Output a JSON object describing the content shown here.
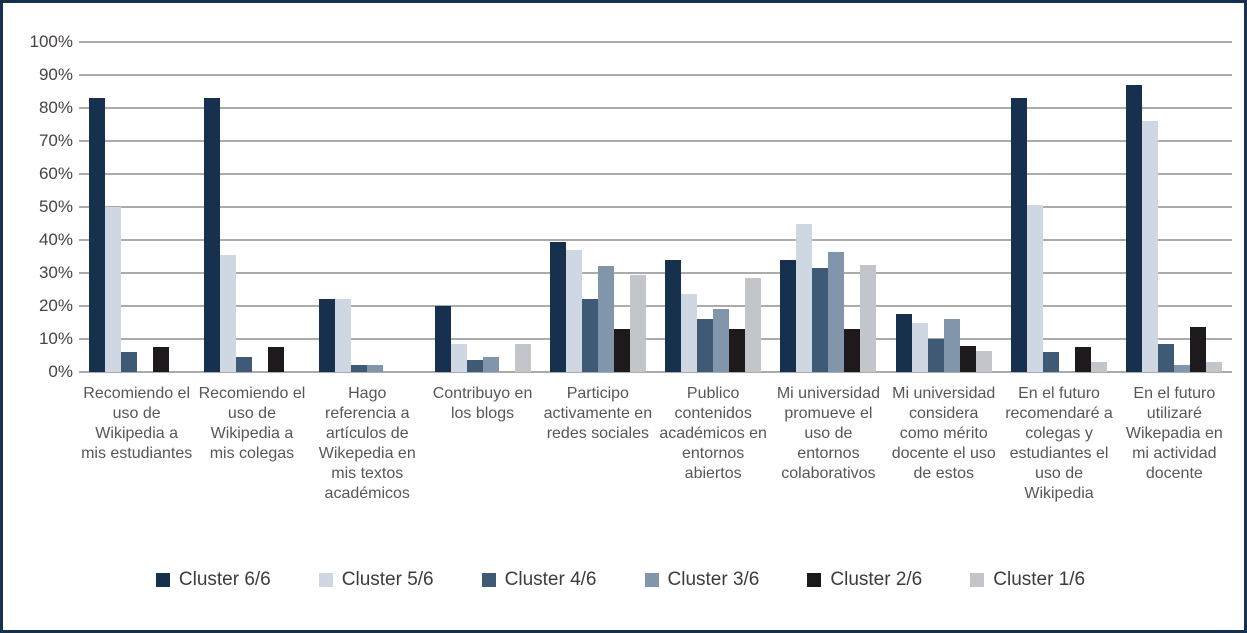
{
  "chart_data": {
    "type": "bar",
    "title": "",
    "xlabel": "",
    "ylabel": "",
    "units": "%",
    "ylim": [
      0,
      100
    ],
    "grid": true,
    "legend_position": "bottom",
    "y_ticks": [
      "100%",
      "90%",
      "80%",
      "70%",
      "60%",
      "50%",
      "40%",
      "30%",
      "20%",
      "10%",
      "0%"
    ],
    "categories": [
      "Recomiendo el uso de Wikipedia a mis estudiantes",
      "Recomiendo el uso de Wikipedia a mis colegas",
      "Hago referencia a artículos de Wikepedia en mis textos académicos",
      "Contribuyo en los blogs",
      "Participo activamente en redes sociales",
      "Publico contenidos académicos en entornos abiertos",
      "Mi universidad promueve el uso de entornos colaborativos",
      "Mi universidad considera como mérito docente el uso de estos",
      "En el futuro recomendaré a colegas y estudiantes el uso de Wikipedia",
      "En el futuro utilizaré Wikepadia en mi actividad docente"
    ],
    "series": [
      {
        "name": "Cluster 6/6",
        "color": "#16304e",
        "values": [
          83,
          83,
          22,
          20,
          39.5,
          34,
          34,
          17.5,
          83,
          87
        ]
      },
      {
        "name": "Cluster 5/6",
        "color": "#cfd7e2",
        "values": [
          50,
          35.5,
          22,
          8.5,
          37,
          23.5,
          45,
          15,
          50.5,
          76
        ]
      },
      {
        "name": "Cluster 4/6",
        "color": "#3e5a75",
        "values": [
          6,
          4.5,
          2,
          3.5,
          22,
          16,
          31.5,
          10,
          6,
          8.5
        ]
      },
      {
        "name": "Cluster 3/6",
        "color": "#8296ab",
        "values": [
          0,
          0,
          2,
          4.5,
          32,
          19,
          36.5,
          16,
          0,
          2
        ]
      },
      {
        "name": "Cluster 2/6",
        "color": "#1d191c",
        "values": [
          7.5,
          7.5,
          0,
          0,
          13,
          13,
          13,
          8,
          7.5,
          13.5
        ]
      },
      {
        "name": "Cluster 1/6",
        "color": "#c2c5c9",
        "values": [
          0,
          0,
          0,
          8.5,
          29.5,
          28.5,
          32.5,
          6.5,
          3,
          3
        ]
      }
    ],
    "colors": {
      "frame_border": "#16304d",
      "gridline": "#ababab",
      "axis_text": "#474340",
      "category_text": "#575757",
      "legend_text": "#3f3b38",
      "background": "#ffffff"
    }
  }
}
